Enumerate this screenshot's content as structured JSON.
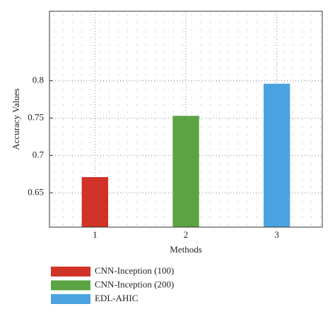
{
  "chart_data": {
    "type": "bar",
    "x": [
      1,
      2,
      3
    ],
    "values": [
      0.671,
      0.753,
      0.796
    ],
    "colors": [
      "#d03227",
      "#5ba443",
      "#4aa3e0"
    ],
    "labels": [
      "CNN-Inception (100)",
      "CNN-Inception (200)",
      "EDL-AHIC"
    ],
    "xlabel": "Methods",
    "ylabel": "Accuracy Values",
    "xlim": [
      0.5,
      3.5
    ],
    "xticks": [
      1,
      2,
      3
    ],
    "ylim": [
      0.604,
      0.893
    ],
    "yticks": [
      0.65,
      0.7,
      0.75,
      0.8
    ],
    "grid": true
  }
}
